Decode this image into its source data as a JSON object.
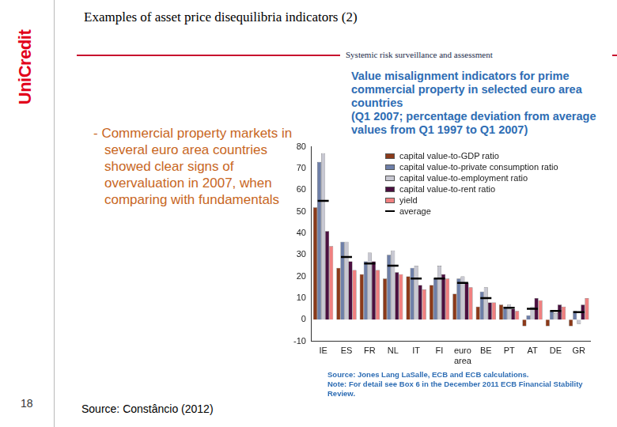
{
  "slide": {
    "logo": "UniCredit",
    "title": "Examples of asset price disequilibria indicators (2)",
    "section": "Systemic risk surveillance and assessment",
    "bullet": "- Commercial property markets in several euro area countries showed clear signs of overvaluation in 2007, when comparing with fundamentals",
    "page": 18,
    "source": "Source: Constâncio (2012)"
  },
  "chart_data": {
    "type": "bar",
    "title": "Value misalignment indicators for prime commercial property in selected euro area countries",
    "subtitle": "(Q1 2007; percentage deviation from average values from Q1 1997 to Q1 2007)",
    "categories": [
      "IE",
      "ES",
      "FR",
      "NL",
      "IT",
      "FI",
      "euro area",
      "BE",
      "PT",
      "AT",
      "DE",
      "GR"
    ],
    "series": [
      {
        "name": "capital value-to-GDP ratio",
        "color": "#8b3a1a",
        "values": [
          52,
          24,
          21,
          19,
          20,
          16,
          12,
          6,
          7,
          -3,
          -3,
          -3
        ]
      },
      {
        "name": "capital value-to-private consumption ratio",
        "color": "#6e7fa8",
        "values": [
          73,
          36,
          27,
          30,
          24,
          19,
          19,
          13,
          6,
          2,
          4,
          4
        ]
      },
      {
        "name": "capital value-to-employment ratio",
        "color": "#c8c8d2",
        "values": [
          77,
          36,
          31,
          32,
          25,
          25,
          20,
          15,
          7,
          6,
          3,
          -2
        ]
      },
      {
        "name": "capital value-to-rent ratio",
        "color": "#4b1040",
        "values": [
          41,
          27,
          27,
          22,
          16,
          21,
          17,
          8,
          5,
          10,
          7,
          7
        ]
      },
      {
        "name": "yield",
        "color": "#f08080",
        "values": [
          34,
          23,
          23,
          21,
          14,
          19,
          15,
          8,
          4,
          9,
          6,
          10
        ]
      },
      {
        "name": "average",
        "type": "line",
        "marker": "dash",
        "color": "#000000",
        "values": [
          55,
          29,
          26,
          25,
          19,
          19,
          17,
          10,
          5.5,
          5,
          4,
          3.5
        ]
      }
    ],
    "ylim": [
      -10,
      80
    ],
    "yticks": [
      -10,
      0,
      10,
      20,
      30,
      40,
      50,
      60,
      70,
      80
    ],
    "grid": false,
    "legend": "upper right",
    "source": "Source: Jones Lang LaSalle, ECB and ECB calculations.",
    "note": "Note: For detail see Box 6 in the December 2011 ECB Financial Stability Review."
  }
}
